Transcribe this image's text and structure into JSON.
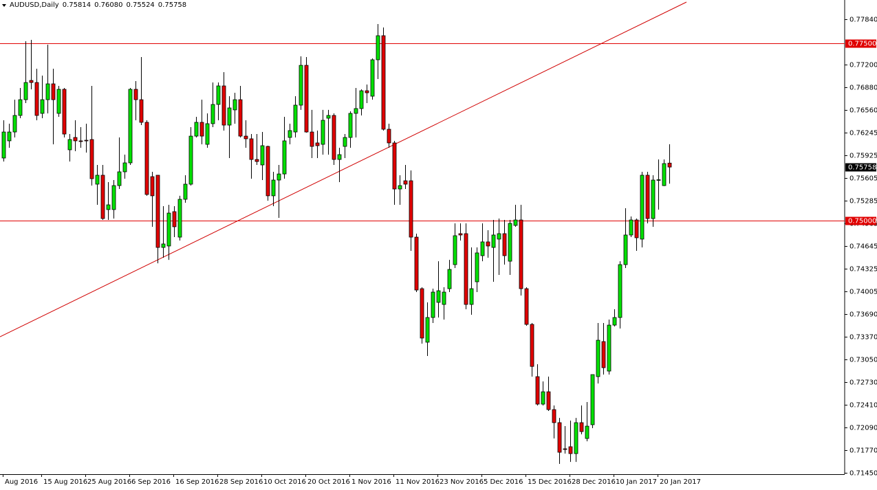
{
  "chart_data": {
    "type": "candlestick",
    "title": "AUDUSD,Daily",
    "last_labels": {
      "open": "0.75814",
      "high": "0.76080",
      "low": "0.75524",
      "close": "0.75758"
    },
    "categories": [
      "Aug 2016",
      null,
      null,
      null,
      null,
      null,
      null,
      "15 Aug 2016",
      null,
      null,
      null,
      null,
      null,
      null,
      null,
      "25 Aug 2016",
      null,
      null,
      null,
      null,
      null,
      null,
      null,
      "6 Sep 2016",
      null,
      null,
      null,
      null,
      null,
      null,
      null,
      "16 Sep 2016",
      null,
      null,
      null,
      null,
      null,
      null,
      null,
      "28 Sep 2016",
      null,
      null,
      null,
      null,
      null,
      null,
      null,
      "10 Oct 2016",
      null,
      null,
      null,
      null,
      null,
      null,
      null,
      "20 Oct 2016",
      null,
      null,
      null,
      null,
      null,
      null,
      null,
      "1 Nov 2016",
      null,
      null,
      null,
      null,
      null,
      null,
      null,
      "11 Nov 2016",
      null,
      null,
      null,
      null,
      null,
      null,
      null,
      "23 Nov 2016",
      null,
      null,
      null,
      null,
      null,
      null,
      null,
      "5 Dec 2016",
      null,
      null,
      null,
      null,
      null,
      null,
      null,
      "15 Dec 2016",
      null,
      null,
      null,
      null,
      null,
      null,
      null,
      "28 Dec 2016",
      null,
      null,
      null,
      null,
      null,
      null,
      null,
      "10 Jan 2017",
      null,
      null,
      null,
      null,
      null,
      null,
      null,
      "20 Jan 2017",
      null,
      null
    ],
    "open": [
      0.75885,
      0.76127,
      0.76252,
      0.76485,
      0.76707,
      0.76978,
      0.76949,
      0.76514,
      0.76707,
      0.7693,
      0.76514,
      0.76853,
      0.76001,
      0.76175,
      0.76127,
      0.76136,
      0.76146,
      0.75517,
      0.75643,
      0.75159,
      0.75159,
      0.75497,
      0.75691,
      0.75817,
      0.76853,
      0.76707,
      0.76388,
      0.75623,
      0.75643,
      0.74626,
      0.74646,
      0.7513,
      0.74771,
      0.75304,
      0.75517,
      0.76194,
      0.76388,
      0.76078,
      0.76369,
      0.7664,
      0.76901,
      0.76349,
      0.76563,
      0.76707,
      0.76194,
      0.76156,
      0.75865,
      0.75788,
      0.76049,
      0.75353,
      0.75575,
      0.75661,
      0.76175,
      0.76252,
      0.7663,
      0.77191,
      0.76252,
      0.76098,
      0.76078,
      0.76446,
      0.76485,
      0.75865,
      0.76049,
      0.76175,
      0.76514,
      0.76582,
      0.76833,
      0.76756,
      0.77269,
      0.77608,
      0.76291,
      0.76098,
      0.75449,
      0.75565,
      0.75565,
      0.74771,
      0.74045,
      0.73291,
      0.73639,
      0.73852,
      0.73823,
      0.74045,
      0.74384,
      0.7482,
      0.7482,
      0.73823,
      0.74142,
      0.7451,
      0.74704,
      0.74626,
      0.74743,
      0.7482,
      0.74432,
      0.74936,
      0.75013,
      0.74045,
      0.73542,
      0.72806,
      0.72419,
      0.72593,
      0.72342,
      0.72158,
      0.7179,
      0.71819,
      0.71722,
      0.72158,
      0.71935,
      0.72129,
      0.72806,
      0.733,
      0.72884,
      0.73532,
      0.73639,
      0.74384,
      0.74801,
      0.75013,
      0.74743,
      0.75643,
      0.75033,
      0.75575,
      0.75497,
      0.75814
    ],
    "high": [
      0.76417,
      0.76369,
      0.76707,
      0.76872,
      0.7753,
      0.7755,
      0.77143,
      0.77046,
      0.77482,
      0.77143,
      0.76901,
      0.76872,
      0.76223,
      0.76417,
      0.7632,
      0.76369,
      0.76901,
      0.75788,
      0.75788,
      0.75546,
      0.75575,
      0.76175,
      0.75933,
      0.76872,
      0.76969,
      0.77308,
      0.76417,
      0.75691,
      0.75643,
      0.75207,
      0.75226,
      0.75207,
      0.75353,
      0.75643,
      0.7632,
      0.76465,
      0.76707,
      0.76514,
      0.76949,
      0.76949,
      0.77095,
      0.76756,
      0.76804,
      0.76901,
      0.76417,
      0.76223,
      0.76223,
      0.76252,
      0.76059,
      0.75691,
      0.75788,
      0.76465,
      0.76369,
      0.76756,
      0.77317,
      0.77308,
      0.76563,
      0.76272,
      0.76563,
      0.76563,
      0.76514,
      0.7603,
      0.76223,
      0.76543,
      0.76872,
      0.76853,
      0.7692,
      0.77288,
      0.77772,
      0.77724,
      0.76369,
      0.76127,
      0.75643,
      0.75788,
      0.7571,
      0.7482,
      0.74065,
      0.73852,
      0.74045,
      0.74432,
      0.74065,
      0.74451,
      0.74965,
      0.74965,
      0.74965,
      0.74626,
      0.74626,
      0.74965,
      0.74868,
      0.75013,
      0.75033,
      0.75013,
      0.75013,
      0.75226,
      0.75226,
      0.74065,
      0.73561,
      0.72981,
      0.72739,
      0.72806,
      0.724,
      0.72225,
      0.72109,
      0.72187,
      0.72225,
      0.724,
      0.72448,
      0.72835,
      0.73561,
      0.73561,
      0.7361,
      0.73755,
      0.74432,
      0.75178,
      0.75062,
      0.75033,
      0.75691,
      0.75691,
      0.75643,
      0.75865,
      0.75865,
      0.7608
    ],
    "low": [
      0.75836,
      0.7603,
      0.76175,
      0.76446,
      0.76659,
      0.76853,
      0.76417,
      0.76446,
      0.76514,
      0.76078,
      0.76465,
      0.76175,
      0.75836,
      0.75981,
      0.7603,
      0.75962,
      0.75497,
      0.75226,
      0.75013,
      0.75013,
      0.75033,
      0.75449,
      0.75594,
      0.75788,
      0.76417,
      0.76349,
      0.75353,
      0.74917,
      0.74403,
      0.74481,
      0.74451,
      0.74771,
      0.74723,
      0.75255,
      0.75497,
      0.76175,
      0.76078,
      0.7603,
      0.7632,
      0.76417,
      0.76272,
      0.75885,
      0.76369,
      0.76175,
      0.7603,
      0.75594,
      0.75788,
      0.75575,
      0.75285,
      0.75207,
      0.75042,
      0.75594,
      0.76078,
      0.76175,
      0.76563,
      0.76243,
      0.75885,
      0.75885,
      0.75933,
      0.75933,
      0.75788,
      0.75546,
      0.75885,
      0.7603,
      0.76175,
      0.76485,
      0.76659,
      0.76707,
      0.76998,
      0.76272,
      0.7603,
      0.75226,
      0.75226,
      0.75449,
      0.74578,
      0.73997,
      0.73271,
      0.73097,
      0.73561,
      0.73639,
      0.7361,
      0.73997,
      0.74336,
      0.74723,
      0.73755,
      0.73678,
      0.73997,
      0.74432,
      0.74481,
      0.74142,
      0.74239,
      0.74384,
      0.74239,
      0.74917,
      0.73949,
      0.73523,
      0.72806,
      0.724,
      0.724,
      0.72322,
      0.71935,
      0.71577,
      0.71722,
      0.71605,
      0.71605,
      0.71993,
      0.71896,
      0.7208,
      0.7271,
      0.72835,
      0.72835,
      0.73513,
      0.73484,
      0.74336,
      0.74771,
      0.74578,
      0.74626,
      0.74965,
      0.74917,
      0.75159,
      0.7549,
      0.75524
    ],
    "close": [
      0.76252,
      0.76252,
      0.76485,
      0.76707,
      0.76949,
      0.76949,
      0.76485,
      0.76707,
      0.7693,
      0.76707,
      0.76853,
      0.76223,
      0.76146,
      0.76127,
      0.76117,
      0.76127,
      0.75594,
      0.75643,
      0.75033,
      0.75226,
      0.75497,
      0.75691,
      0.75817,
      0.76853,
      0.76707,
      0.76388,
      0.75372,
      0.75353,
      0.74626,
      0.74675,
      0.7511,
      0.74917,
      0.75304,
      0.75517,
      0.76194,
      0.76388,
      0.76194,
      0.76369,
      0.7664,
      0.76901,
      0.76349,
      0.76591,
      0.76707,
      0.76194,
      0.76156,
      0.75865,
      0.75836,
      0.76059,
      0.75353,
      0.75575,
      0.75661,
      0.76127,
      0.76272,
      0.7663,
      0.77191,
      0.76252,
      0.76049,
      0.76059,
      0.76417,
      0.76485,
      0.75865,
      0.75933,
      0.76175,
      0.76514,
      0.76582,
      0.76833,
      0.76804,
      0.77269,
      0.77608,
      0.76291,
      0.76098,
      0.75449,
      0.75497,
      0.75517,
      0.74771,
      0.74026,
      0.73349,
      0.73639,
      0.73997,
      0.74016,
      0.73997,
      0.74316,
      0.74791,
      0.74801,
      0.73823,
      0.74045,
      0.74549,
      0.74704,
      0.74646,
      0.74801,
      0.7482,
      0.7451,
      0.74965,
      0.75013,
      0.74045,
      0.73542,
      0.7295,
      0.72419,
      0.72593,
      0.72342,
      0.72158,
      0.71741,
      0.7178,
      0.71722,
      0.72158,
      0.72032,
      0.72109,
      0.72835,
      0.73319,
      0.72932,
      0.73532,
      0.73639,
      0.74384,
      0.74801,
      0.75013,
      0.74762,
      0.75643,
      0.75033,
      0.75575,
      0.7558,
      0.75807,
      0.75758
    ],
    "up_color": "#00e000",
    "down_color": "#e00000",
    "ylim": [
      0.71432,
      0.78111
    ],
    "yticks": [
      {
        "value": 0.7784,
        "label": "0.77840"
      },
      {
        "value": 0.772,
        "label": "0.77200"
      },
      {
        "value": 0.7688,
        "label": "0.76880"
      },
      {
        "value": 0.7656,
        "label": "0.76560"
      },
      0.76245,
      0.75925,
      0.75605,
      0.75285,
      0.74965,
      0.74645,
      0.74325,
      {
        "value": 0.74005,
        "label": "0.74005"
      },
      {
        "value": 0.7369,
        "label": "0.73690"
      },
      {
        "value": 0.7337,
        "label": "0.73370"
      },
      {
        "value": 0.7305,
        "label": "0.73050"
      },
      {
        "value": 0.7273,
        "label": "0.72730"
      },
      {
        "value": 0.7241,
        "label": "0.72410"
      },
      {
        "value": 0.7209,
        "label": "0.72090"
      },
      {
        "value": 0.7177,
        "label": "0.71770"
      },
      {
        "value": 0.7145,
        "label": "0.71450"
      }
    ],
    "hlines": [
      {
        "value": 0.775,
        "label": "0.77500",
        "color": "#e00000"
      },
      {
        "value": 0.75,
        "label": "0.75000",
        "color": "#e00000"
      }
    ],
    "trendline": {
      "x": [
        -0.625,
        124.125
      ],
      "y": [
        0.73368,
        0.78082
      ],
      "color": "#d00000"
    }
  }
}
